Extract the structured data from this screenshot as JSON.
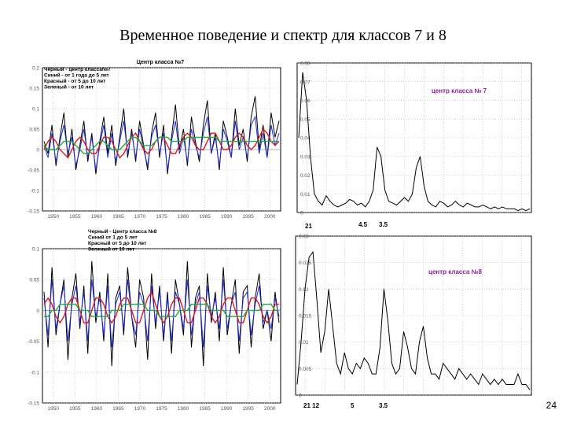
{
  "slide": {
    "title": "Временное поведение и спектр для классов 7 и 8",
    "page_number": "24"
  },
  "chart_data": [
    {
      "type": "line",
      "title": "Центр класса №7",
      "legend": [
        "Черный - центр класса№7",
        "Синий - от 1 года до 5 лет",
        "Красный - от 5 до 10 лет",
        "Зеленый - от 10 лет"
      ],
      "x_ticks": [
        "1950",
        "1955",
        "1960",
        "1965",
        "1970",
        "1975",
        "1980",
        "1985",
        "1990",
        "1995",
        "2000"
      ],
      "y_ticks": [
        "0.2",
        "0.15",
        "0.1",
        "0.05",
        "0",
        "-0.05",
        "-0.1",
        "-0.15"
      ],
      "ylim": [
        -0.15,
        0.2
      ],
      "grid": true,
      "colors": {
        "black": "#000000",
        "blue": "#1f2bd6",
        "red": "#e01818",
        "green": "#18b030"
      },
      "series": [
        {
          "name": "Черный - центр класса№7",
          "color": "#000000",
          "values": [
            0.02,
            -0.01,
            0.06,
            -0.04,
            0.03,
            0.09,
            -0.02,
            0.05,
            -0.05,
            0.01,
            0.07,
            -0.03,
            0.04,
            -0.06,
            0.02,
            0.08,
            -0.01,
            0.06,
            -0.04,
            0.03,
            0.1,
            -0.02,
            0.05,
            -0.03,
            0.07,
            0.01,
            -0.05,
            0.04,
            0.09,
            -0.02,
            0.06,
            -0.06,
            0.03,
            0.11,
            0.0,
            0.05,
            -0.04,
            0.08,
            0.02,
            -0.03,
            0.06,
            0.12,
            -0.01,
            0.04,
            -0.05,
            0.07,
            0.03,
            -0.02,
            0.1,
            0.01,
            0.05,
            -0.03,
            0.08,
            0.13,
            0.0,
            0.06,
            -0.02,
            0.09,
            0.03,
            0.07
          ]
        },
        {
          "name": "Синий - от 1 года до 5 лет",
          "color": "#1f2bd6",
          "values": [
            0.01,
            -0.02,
            0.04,
            -0.03,
            0.02,
            0.06,
            -0.01,
            0.03,
            -0.04,
            0.0,
            0.05,
            -0.02,
            0.03,
            -0.05,
            0.01,
            0.06,
            -0.02,
            0.04,
            -0.03,
            0.02,
            0.07,
            -0.01,
            0.04,
            -0.02,
            0.05,
            0.0,
            -0.04,
            0.03,
            0.06,
            -0.01,
            0.04,
            -0.05,
            0.02,
            0.07,
            -0.01,
            0.03,
            -0.03,
            0.05,
            0.01,
            -0.02,
            0.04,
            0.08,
            -0.01,
            0.03,
            -0.04,
            0.05,
            0.02,
            -0.02,
            0.07,
            0.0,
            0.03,
            -0.02,
            0.06,
            0.08,
            -0.01,
            0.04,
            -0.02,
            0.06,
            0.01,
            0.04
          ]
        },
        {
          "name": "Красный - от 5 до 10 лет",
          "color": "#e01818",
          "values": [
            0.0,
            0.02,
            0.03,
            0.02,
            0.0,
            -0.01,
            -0.02,
            0.0,
            0.02,
            0.03,
            0.02,
            0.0,
            -0.01,
            -0.01,
            0.01,
            0.03,
            0.03,
            0.02,
            0.0,
            -0.02,
            -0.01,
            0.01,
            0.03,
            0.04,
            0.02,
            0.0,
            -0.01,
            0.0,
            0.02,
            0.03,
            0.03,
            0.01,
            -0.01,
            -0.01,
            0.01,
            0.03,
            0.04,
            0.03,
            0.01,
            0.0,
            0.0,
            0.02,
            0.04,
            0.04,
            0.02,
            0.0,
            0.0,
            0.01,
            0.03,
            0.04,
            0.03,
            0.01,
            0.0,
            0.01,
            0.03,
            0.05,
            0.04,
            0.02,
            0.01,
            0.02
          ]
        },
        {
          "name": "Зеленый - от 10 лет",
          "color": "#18b030",
          "values": [
            0.01,
            0.0,
            0.0,
            0.0,
            0.01,
            0.02,
            0.02,
            0.02,
            0.01,
            0.0,
            -0.01,
            -0.01,
            0.0,
            0.01,
            0.02,
            0.02,
            0.01,
            0.0,
            0.0,
            0.0,
            0.01,
            0.02,
            0.03,
            0.03,
            0.02,
            0.01,
            0.01,
            0.01,
            0.02,
            0.03,
            0.03,
            0.03,
            0.02,
            0.02,
            0.02,
            0.02,
            0.03,
            0.03,
            0.03,
            0.03,
            0.03,
            0.03,
            0.03,
            0.03,
            0.02,
            0.02,
            0.02,
            0.02,
            0.02,
            0.02,
            0.02,
            0.02,
            0.02,
            0.02,
            0.02,
            0.02,
            0.02,
            0.02,
            0.02,
            0.02
          ]
        }
      ]
    },
    {
      "type": "line",
      "title": "центр класса № 7",
      "y_ticks": [
        "0.08",
        "0.07",
        "0.06",
        "0.05",
        "0.04",
        "0.03",
        "0.02",
        "0.01",
        "0"
      ],
      "ylim": [
        0,
        0.08
      ],
      "grid": true,
      "annotations": [
        "21",
        "4.5",
        "3.5"
      ],
      "series": [
        {
          "color": "#000000",
          "values": [
            0.04,
            0.075,
            0.06,
            0.03,
            0.01,
            0.006,
            0.004,
            0.009,
            0.006,
            0.004,
            0.003,
            0.004,
            0.005,
            0.007,
            0.006,
            0.004,
            0.005,
            0.003,
            0.006,
            0.012,
            0.035,
            0.03,
            0.012,
            0.006,
            0.005,
            0.004,
            0.006,
            0.008,
            0.006,
            0.01,
            0.024,
            0.03,
            0.014,
            0.006,
            0.004,
            0.003,
            0.006,
            0.005,
            0.003,
            0.004,
            0.006,
            0.004,
            0.003,
            0.005,
            0.004,
            0.003,
            0.003,
            0.004,
            0.003,
            0.002,
            0.003,
            0.002,
            0.003,
            0.002,
            0.002,
            0.002,
            0.001,
            0.002,
            0.001,
            0.002
          ]
        }
      ]
    },
    {
      "type": "line",
      "title": "Черный - Центр класса №8",
      "legend": [
        "Черный - Центр класса №8",
        "Синий от 1 до 5 лет",
        "Красный от 5 до 10 лет",
        "Зеленый от 10 лет"
      ],
      "x_ticks": [
        "1950",
        "1955",
        "1960",
        "1965",
        "1970",
        "1975",
        "1980",
        "1985",
        "1990",
        "1995",
        "2000"
      ],
      "y_ticks": [
        "0.1",
        "0.05",
        "0",
        "-0.05",
        "-0.1",
        "-0.15"
      ],
      "ylim": [
        -0.15,
        0.1
      ],
      "grid": true,
      "series": [
        {
          "name": "Черный - Центр класса №8",
          "color": "#000000",
          "values": [
            0.03,
            -0.06,
            0.07,
            -0.04,
            0.01,
            0.05,
            -0.08,
            0.02,
            0.06,
            -0.03,
            0.04,
            -0.07,
            0.08,
            -0.02,
            0.03,
            -0.05,
            0.06,
            -0.09,
            0.02,
            0.04,
            -0.04,
            0.07,
            -0.01,
            -0.06,
            0.05,
            0.02,
            -0.08,
            0.06,
            -0.03,
            0.04,
            -0.05,
            0.03,
            -0.07,
            0.05,
            0.01,
            -0.04,
            0.08,
            -0.06,
            0.02,
            0.04,
            -0.09,
            0.06,
            -0.02,
            0.03,
            -0.05,
            0.07,
            -0.04,
            0.01,
            0.05,
            -0.07,
            0.03,
            0.04,
            -0.06,
            0.02,
            0.06,
            -0.03,
            0.0,
            -0.05,
            0.03,
            -0.02
          ]
        },
        {
          "name": "Синий от 1 до 5 лет",
          "color": "#1f2bd6",
          "values": [
            0.02,
            -0.04,
            0.05,
            -0.03,
            0.01,
            0.04,
            -0.05,
            0.01,
            0.04,
            -0.02,
            0.03,
            -0.05,
            0.05,
            -0.01,
            0.02,
            -0.04,
            0.04,
            -0.06,
            0.01,
            0.03,
            -0.03,
            0.05,
            -0.01,
            -0.04,
            0.03,
            0.01,
            -0.05,
            0.04,
            -0.02,
            0.03,
            -0.04,
            0.02,
            -0.05,
            0.03,
            0.01,
            -0.03,
            0.05,
            -0.04,
            0.01,
            0.03,
            -0.06,
            0.04,
            -0.01,
            0.02,
            -0.03,
            0.05,
            -0.03,
            0.01,
            0.03,
            -0.05,
            0.02,
            0.03,
            -0.04,
            0.01,
            0.04,
            -0.02,
            0.0,
            -0.03,
            0.02,
            -0.01
          ]
        },
        {
          "name": "Красный от 5 до 10 лет",
          "color": "#e01818",
          "values": [
            0.01,
            0.02,
            0.01,
            -0.01,
            -0.02,
            -0.01,
            0.01,
            0.02,
            0.02,
            0.0,
            -0.02,
            -0.02,
            0.0,
            0.02,
            0.02,
            0.01,
            -0.01,
            -0.02,
            -0.01,
            0.01,
            0.02,
            0.02,
            0.0,
            -0.02,
            -0.02,
            0.0,
            0.02,
            0.03,
            0.01,
            -0.01,
            -0.02,
            -0.01,
            0.01,
            0.02,
            0.02,
            0.0,
            -0.02,
            -0.02,
            0.0,
            0.02,
            0.02,
            0.01,
            -0.01,
            -0.02,
            -0.01,
            0.01,
            0.02,
            0.02,
            0.0,
            -0.02,
            -0.02,
            0.0,
            0.02,
            0.02,
            0.01,
            -0.01,
            -0.02,
            -0.01,
            0.01,
            0.01
          ]
        },
        {
          "name": "Зеленый от 10 лет",
          "color": "#18b030",
          "values": [
            -0.01,
            -0.01,
            0.0,
            0.0,
            0.01,
            0.01,
            0.01,
            0.01,
            0.01,
            0.0,
            0.0,
            0.0,
            -0.01,
            -0.01,
            -0.01,
            -0.01,
            -0.01,
            0.0,
            0.0,
            0.0,
            0.01,
            0.01,
            0.01,
            0.01,
            0.01,
            0.01,
            0.0,
            0.0,
            0.0,
            -0.01,
            -0.01,
            -0.01,
            -0.01,
            -0.01,
            0.0,
            0.0,
            0.0,
            0.01,
            0.01,
            0.01,
            0.01,
            0.01,
            0.0,
            0.0,
            0.0,
            0.0,
            -0.01,
            -0.01,
            -0.01,
            -0.01,
            -0.01,
            0.0,
            0.0,
            0.0,
            0.0,
            0.01,
            0.01,
            0.01,
            0.0,
            0.0
          ]
        }
      ]
    },
    {
      "type": "line",
      "title": "центр класса №8",
      "y_ticks": [
        "0.03",
        "0.025",
        "0.02",
        "0.015",
        "0.01",
        "0.005",
        "0"
      ],
      "ylim": [
        0,
        0.03
      ],
      "grid": true,
      "annotations": [
        "21 12",
        "5",
        "3.5"
      ],
      "series": [
        {
          "color": "#000000",
          "values": [
            0.002,
            0.01,
            0.02,
            0.026,
            0.027,
            0.018,
            0.008,
            0.012,
            0.02,
            0.013,
            0.006,
            0.004,
            0.008,
            0.005,
            0.004,
            0.006,
            0.005,
            0.007,
            0.006,
            0.004,
            0.004,
            0.009,
            0.02,
            0.014,
            0.006,
            0.004,
            0.005,
            0.012,
            0.009,
            0.005,
            0.004,
            0.01,
            0.013,
            0.007,
            0.004,
            0.004,
            0.003,
            0.006,
            0.005,
            0.004,
            0.003,
            0.005,
            0.004,
            0.003,
            0.004,
            0.003,
            0.002,
            0.004,
            0.003,
            0.002,
            0.003,
            0.002,
            0.003,
            0.002,
            0.002,
            0.002,
            0.004,
            0.002,
            0.002,
            0.001
          ]
        }
      ]
    }
  ]
}
